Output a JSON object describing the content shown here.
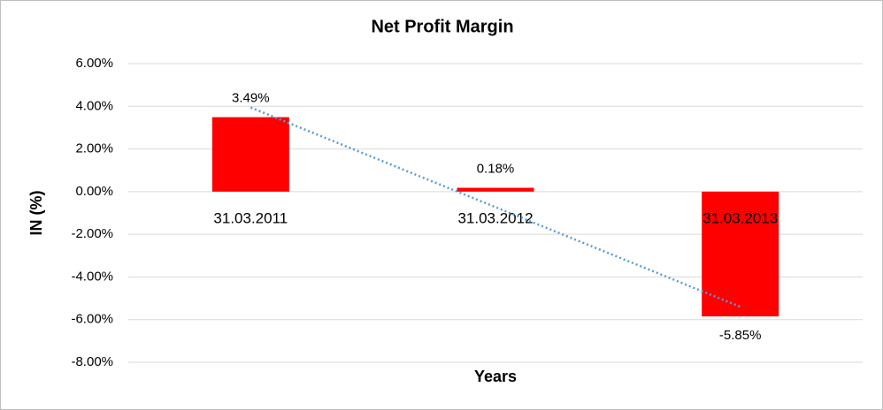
{
  "chart_data": {
    "type": "bar",
    "title": "Net Profit Margin",
    "x_label": "Years",
    "y_label": "IN (%)",
    "categories": [
      "31.03.2011",
      "31.03.2012",
      "31.03.2013"
    ],
    "values": [
      3.49,
      0.18,
      -5.85
    ],
    "value_labels": [
      "3.49%",
      "0.18%",
      "-5.85%"
    ],
    "color": "#ff0000",
    "trendline": "linear",
    "trendline_color": "#5b9bd5",
    "ylim": [
      -8,
      6
    ],
    "yticks": [
      {
        "value": 6,
        "label": "6.00%"
      },
      {
        "value": 4,
        "label": "4.00%"
      },
      {
        "value": 2,
        "label": "2.00%"
      },
      {
        "value": 0,
        "label": "0.00%"
      },
      {
        "value": -2,
        "label": "-2.00%"
      },
      {
        "value": -4,
        "label": "-4.00%"
      },
      {
        "value": -6,
        "label": "-6.00%"
      },
      {
        "value": -8,
        "label": "-8.00%"
      }
    ],
    "grid": true
  }
}
